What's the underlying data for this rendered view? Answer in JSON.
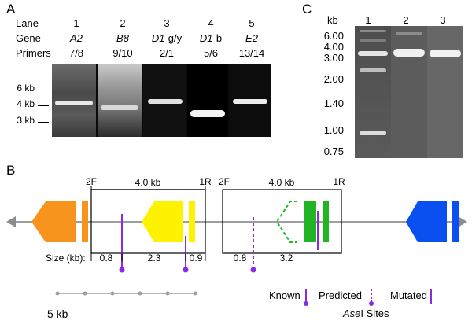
{
  "panel_a": {
    "letter": "A",
    "row_labels": {
      "lane": "Lane",
      "gene": "Gene",
      "primers": "Primers"
    },
    "lanes": [
      {
        "number": "1",
        "gene": "A2",
        "gene_italic": true,
        "primers": "7/8"
      },
      {
        "number": "2",
        "gene": "B8",
        "gene_italic": true,
        "primers": "9/10"
      },
      {
        "number": "3",
        "gene": "D1",
        "gene_italic": true,
        "gene_suffix": "-g/y",
        "primers": "2/1"
      },
      {
        "number": "4",
        "gene": "D1",
        "gene_italic": true,
        "gene_suffix": "-b",
        "primers": "5/6"
      },
      {
        "number": "5",
        "gene": "E2",
        "gene_italic": true,
        "primers": "13/14"
      }
    ],
    "size_markers": [
      "6 kb",
      "4 kb",
      "3 kb"
    ]
  },
  "panel_c": {
    "letter": "C",
    "unit_label": "kb",
    "lanes": [
      "1",
      "2",
      "3"
    ],
    "ladder": [
      "6.00",
      "4.00",
      "3.00",
      "2.00",
      "1.40",
      "1.00",
      "0.75"
    ]
  },
  "panel_b": {
    "letter": "B",
    "primer_labels": {
      "left_f": "2F",
      "left_r": "1R",
      "right_f": "2F",
      "right_r": "1R"
    },
    "amplicon_sizes": {
      "left": "4.0 kb",
      "right": "4.0 kb"
    },
    "size_label": "Size (kb):",
    "fragments_left": [
      "0.8",
      "2.3",
      "0.9"
    ],
    "fragments_right": [
      "0.8",
      "3.2"
    ],
    "scale_label": "5 kb",
    "legend": {
      "known": "Known",
      "predicted": "Predicted",
      "mutated": "Mutated",
      "sites_prefix": "Ase",
      "sites_suffix": "I Sites"
    },
    "colors": {
      "orange": "#f7941d",
      "yellow": "#fff200",
      "green": "#22b523",
      "blue": "#0a50f0",
      "purple": "#8a2be2",
      "gray": "#9e9e9e"
    }
  }
}
